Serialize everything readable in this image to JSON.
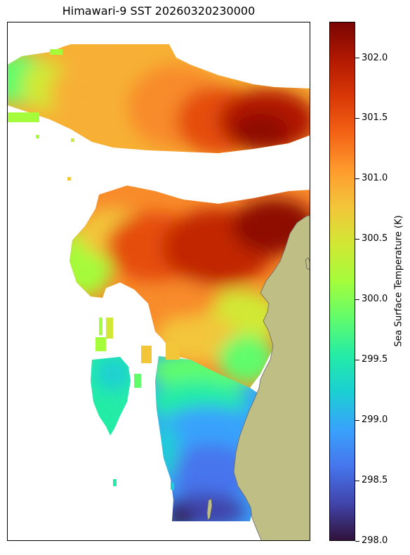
{
  "title": "Himawari-9 SST 20260320230000",
  "colorbar": {
    "label": "Sea Surface Temperature (K)",
    "min": 298.0,
    "max": 302.3,
    "ticks": [
      "298.0",
      "298.5",
      "299.0",
      "299.5",
      "300.0",
      "300.5",
      "301.0",
      "301.5",
      "302.0"
    ],
    "colormap": "turbo",
    "stops": [
      "#30123b",
      "#4145ab",
      "#4675ed",
      "#39a2fc",
      "#1bcfd4",
      "#24eca6",
      "#61fc6c",
      "#a4fc3b",
      "#d1e834",
      "#f3c63a",
      "#fe9b2d",
      "#f36315",
      "#d93806",
      "#b11901",
      "#7a0403"
    ]
  },
  "map": {
    "land_color": "#bfbf85",
    "coast_color": "#666666",
    "no_data_color": "#ffffff"
  },
  "chart_data": {
    "type": "heatmap",
    "title": "Himawari-9 SST 20260320230000",
    "colorbar_label": "Sea Surface Temperature (K)",
    "value_range": [
      298.0,
      302.3
    ],
    "regions": [
      {
        "area": "northern band, west",
        "approx_value": 300.6
      },
      {
        "area": "northern band, center",
        "approx_value": 301.0
      },
      {
        "area": "northern band, east",
        "approx_value": 302.1
      },
      {
        "area": "middle, northeast",
        "approx_value": 302.0
      },
      {
        "area": "middle, west",
        "approx_value": 300.3
      },
      {
        "area": "middle, center",
        "approx_value": 301.4
      },
      {
        "area": "south, upper",
        "approx_value": 299.8
      },
      {
        "area": "south, middle",
        "approx_value": 298.9
      },
      {
        "area": "south, far south",
        "approx_value": 298.3
      }
    ]
  }
}
